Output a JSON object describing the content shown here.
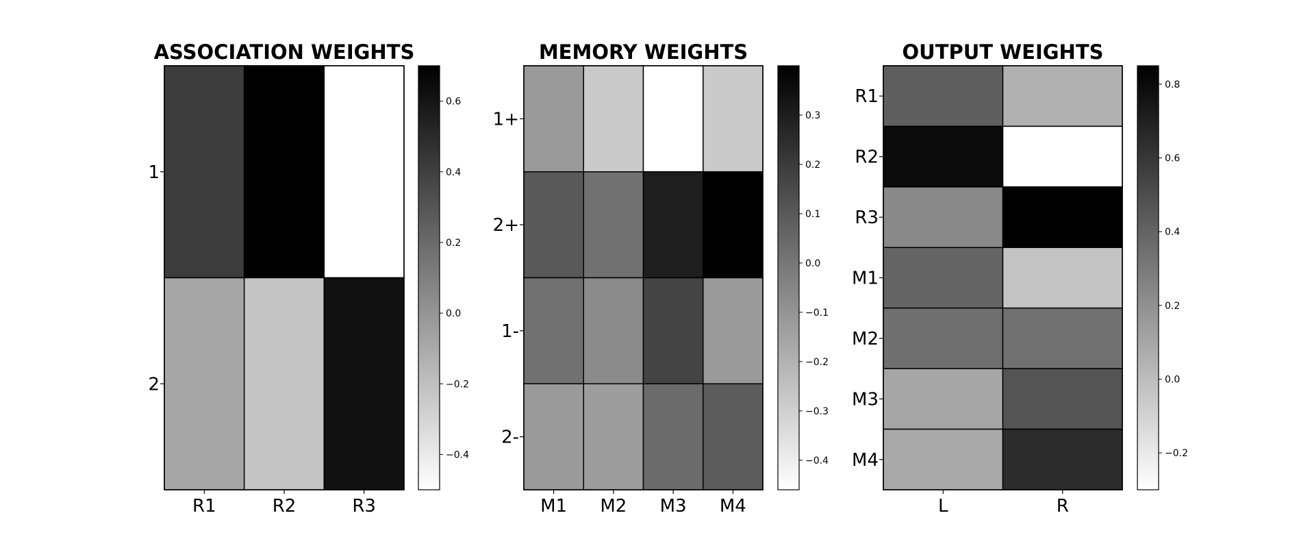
{
  "chart_data": [
    {
      "type": "heatmap",
      "title": "ASSOCIATION WEIGHTS",
      "xlabel": "",
      "ylabel": "",
      "x_categories": [
        "R1",
        "R2",
        "R3"
      ],
      "y_categories": [
        "1",
        "2"
      ],
      "values": [
        [
          0.42,
          0.7,
          -0.5
        ],
        [
          -0.08,
          -0.22,
          0.62
        ]
      ],
      "colorbar": {
        "min": -0.5,
        "max": 0.7,
        "ticks": [
          -0.4,
          -0.2,
          0.0,
          0.2,
          0.4,
          0.6
        ]
      },
      "colormap": "Greys"
    },
    {
      "type": "heatmap",
      "title": "MEMORY WEIGHTS",
      "xlabel": "",
      "ylabel": "",
      "x_categories": [
        "M1",
        "M2",
        "M3",
        "M4"
      ],
      "y_categories": [
        "1+",
        "2+",
        "1-",
        "2-"
      ],
      "values": [
        [
          -0.12,
          -0.28,
          -0.46,
          -0.28
        ],
        [
          0.1,
          0.02,
          0.3,
          0.4
        ],
        [
          0.02,
          -0.07,
          0.17,
          -0.12
        ],
        [
          -0.12,
          -0.13,
          0.04,
          0.09
        ]
      ],
      "colorbar": {
        "min": -0.46,
        "max": 0.4,
        "ticks": [
          -0.4,
          -0.3,
          -0.2,
          -0.1,
          0.0,
          0.1,
          0.2,
          0.3
        ]
      },
      "colormap": "Greys"
    },
    {
      "type": "heatmap",
      "title": "OUTPUT WEIGHTS",
      "xlabel": "",
      "ylabel": "",
      "x_categories": [
        "L",
        "R"
      ],
      "y_categories": [
        "R1",
        "R2",
        "R3",
        "M1",
        "M2",
        "M3",
        "M4"
      ],
      "values": [
        [
          0.42,
          0.05
        ],
        [
          0.8,
          -0.3
        ],
        [
          0.23,
          0.85
        ],
        [
          0.4,
          -0.03
        ],
        [
          0.35,
          0.34
        ],
        [
          0.1,
          0.47
        ],
        [
          0.09,
          0.65
        ]
      ],
      "colorbar": {
        "min": -0.3,
        "max": 0.85,
        "ticks": [
          -0.2,
          0.0,
          0.2,
          0.4,
          0.6,
          0.8
        ]
      },
      "colormap": "Greys"
    }
  ]
}
